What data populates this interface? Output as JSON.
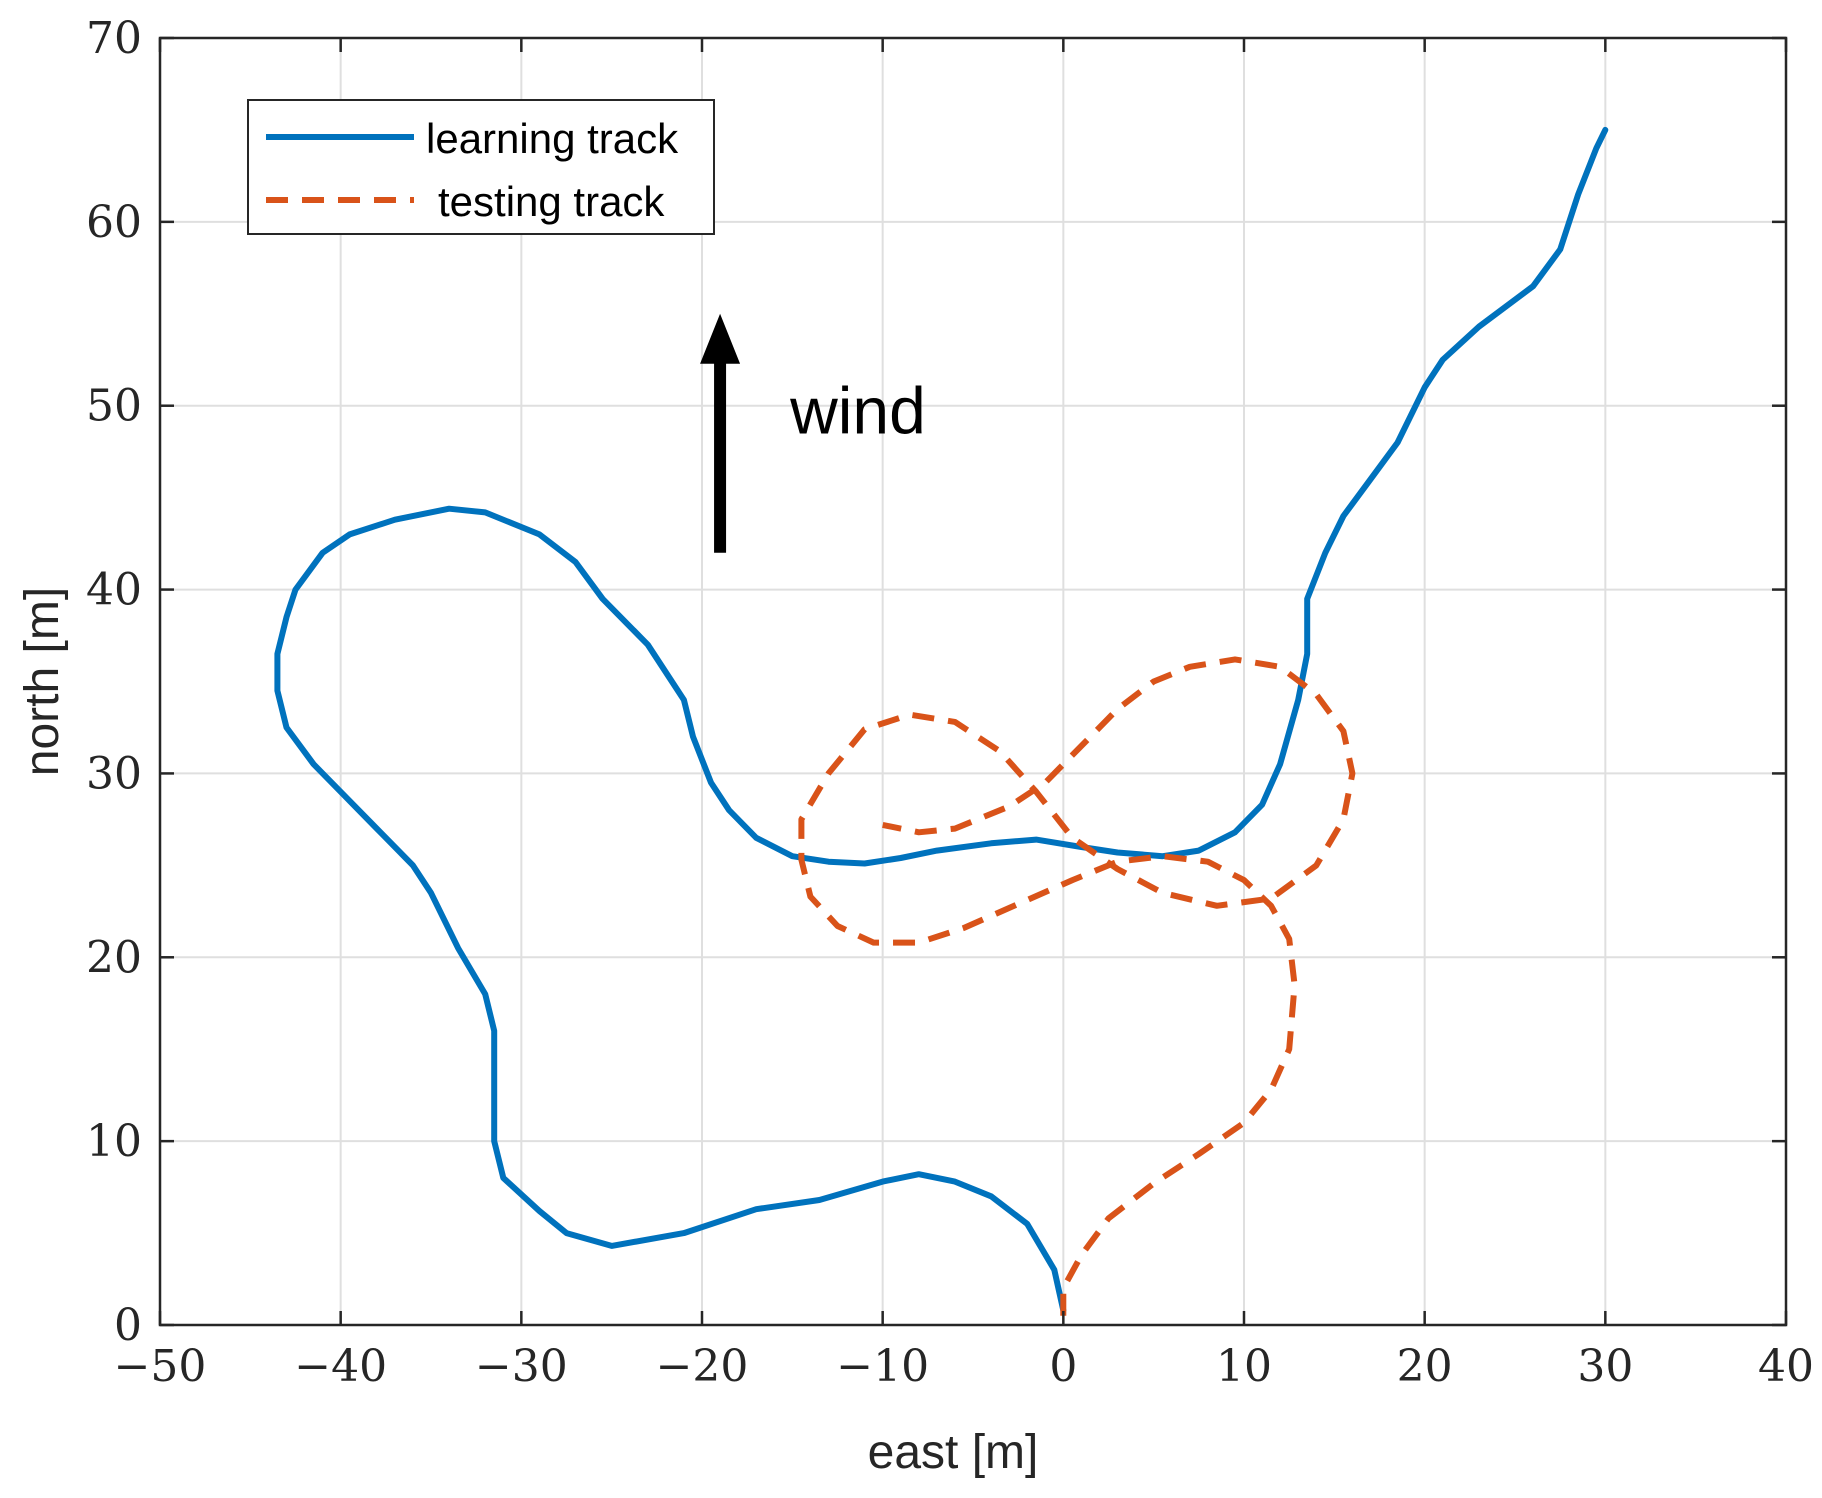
{
  "chart_data": {
    "type": "line",
    "title": "",
    "xlabel": "east  [m]",
    "ylabel": "north [m]",
    "xlim": [
      -50,
      40
    ],
    "ylim": [
      0,
      70
    ],
    "xticks": [
      -50,
      -40,
      -30,
      -20,
      -10,
      0,
      10,
      20,
      30,
      40
    ],
    "yticks": [
      0,
      10,
      20,
      30,
      40,
      50,
      60,
      70
    ],
    "xtick_labels": [
      "−50",
      "−40",
      "−30",
      "−20",
      "−10",
      "0",
      "10",
      "20",
      "30",
      "40"
    ],
    "ytick_labels": [
      "0",
      "10",
      "20",
      "30",
      "40",
      "50",
      "60",
      "70"
    ],
    "grid": true,
    "legend_position": "top-left",
    "annotation": {
      "text": "wind",
      "arrow_direction": "north",
      "arrow_x": -19,
      "arrow_y_start": 42,
      "arrow_y_end": 55
    },
    "series": [
      {
        "name": "learning track",
        "color": "#0072BD",
        "style": "solid",
        "points": [
          [
            0,
            0.8
          ],
          [
            -0.5,
            3
          ],
          [
            -2,
            5.5
          ],
          [
            -4,
            7
          ],
          [
            -6,
            7.8
          ],
          [
            -8,
            8.2
          ],
          [
            -10,
            7.8
          ],
          [
            -13.5,
            6.8
          ],
          [
            -17,
            6.3
          ],
          [
            -21,
            5.0
          ],
          [
            -25,
            4.3
          ],
          [
            -27.5,
            5.0
          ],
          [
            -29,
            6.2
          ],
          [
            -31,
            8
          ],
          [
            -31.5,
            10
          ],
          [
            -31.5,
            13
          ],
          [
            -31.5,
            16
          ],
          [
            -32,
            18
          ],
          [
            -33.5,
            20.5
          ],
          [
            -35,
            23.5
          ],
          [
            -36,
            25
          ],
          [
            -38,
            27
          ],
          [
            -40,
            29
          ],
          [
            -41.5,
            30.5
          ],
          [
            -43,
            32.5
          ],
          [
            -43.5,
            34.5
          ],
          [
            -43.5,
            36.5
          ],
          [
            -43,
            38.5
          ],
          [
            -42.5,
            40
          ],
          [
            -41,
            42
          ],
          [
            -39.5,
            43
          ],
          [
            -37,
            43.8
          ],
          [
            -34,
            44.4
          ],
          [
            -32,
            44.2
          ],
          [
            -29,
            43
          ],
          [
            -27,
            41.5
          ],
          [
            -25.5,
            39.5
          ],
          [
            -23,
            37
          ],
          [
            -21,
            34
          ],
          [
            -20.5,
            32
          ],
          [
            -19.5,
            29.5
          ],
          [
            -18.5,
            28
          ],
          [
            -17,
            26.5
          ],
          [
            -15,
            25.5
          ],
          [
            -13,
            25.2
          ],
          [
            -11,
            25.1
          ],
          [
            -9,
            25.4
          ],
          [
            -7,
            25.8
          ],
          [
            -4,
            26.2
          ],
          [
            -1.5,
            26.4
          ],
          [
            1,
            26.0
          ],
          [
            3,
            25.7
          ],
          [
            5.5,
            25.5
          ],
          [
            7.5,
            25.8
          ],
          [
            9.5,
            26.8
          ],
          [
            11,
            28.3
          ],
          [
            12,
            30.5
          ],
          [
            13,
            34
          ],
          [
            13.5,
            36.5
          ],
          [
            13.5,
            39.5
          ],
          [
            14.5,
            42
          ],
          [
            15.5,
            44
          ],
          [
            17,
            46
          ],
          [
            18.5,
            48
          ],
          [
            20,
            51
          ],
          [
            21,
            52.5
          ],
          [
            23,
            54.3
          ],
          [
            26,
            56.5
          ],
          [
            27.5,
            58.5
          ],
          [
            28.5,
            61.5
          ],
          [
            29.5,
            64
          ],
          [
            30,
            65
          ]
        ]
      },
      {
        "name": "testing track",
        "color": "#D95319",
        "style": "dashed",
        "points": [
          [
            0,
            0.5
          ],
          [
            0,
            2
          ],
          [
            1,
            3.8
          ],
          [
            2.5,
            5.8
          ],
          [
            5,
            7.7
          ],
          [
            7.5,
            9.3
          ],
          [
            10,
            11
          ],
          [
            11.5,
            12.8
          ],
          [
            12.5,
            15
          ],
          [
            12.8,
            18.5
          ],
          [
            12.5,
            21
          ],
          [
            11.5,
            22.8
          ],
          [
            10,
            24.2
          ],
          [
            8,
            25.2
          ],
          [
            5.5,
            25.5
          ],
          [
            3,
            25.2
          ],
          [
            0.5,
            24.2
          ],
          [
            -2.5,
            22.9
          ],
          [
            -5.5,
            21.6
          ],
          [
            -8,
            20.8
          ],
          [
            -10.5,
            20.8
          ],
          [
            -12.5,
            21.7
          ],
          [
            -14,
            23.3
          ],
          [
            -14.5,
            25.3
          ],
          [
            -14.5,
            27.5
          ],
          [
            -13,
            30
          ],
          [
            -11,
            32.4
          ],
          [
            -8.5,
            33.2
          ],
          [
            -6,
            32.8
          ],
          [
            -3.5,
            31.2
          ],
          [
            -1.5,
            29.0
          ],
          [
            0.5,
            26.5
          ],
          [
            3,
            24.8
          ],
          [
            5.5,
            23.5
          ],
          [
            8.5,
            22.8
          ],
          [
            11.5,
            23.2
          ],
          [
            14,
            25
          ],
          [
            15.5,
            27.5
          ],
          [
            16,
            30
          ],
          [
            15.5,
            32.3
          ],
          [
            14,
            34.3
          ],
          [
            12,
            35.8
          ],
          [
            9.5,
            36.2
          ],
          [
            7,
            35.8
          ],
          [
            5,
            35
          ],
          [
            3,
            33.5
          ],
          [
            1,
            31.5
          ],
          [
            -1,
            29.5
          ],
          [
            -3,
            28.2
          ],
          [
            -6,
            27
          ],
          [
            -8,
            26.8
          ],
          [
            -10,
            27.2
          ]
        ]
      }
    ]
  }
}
